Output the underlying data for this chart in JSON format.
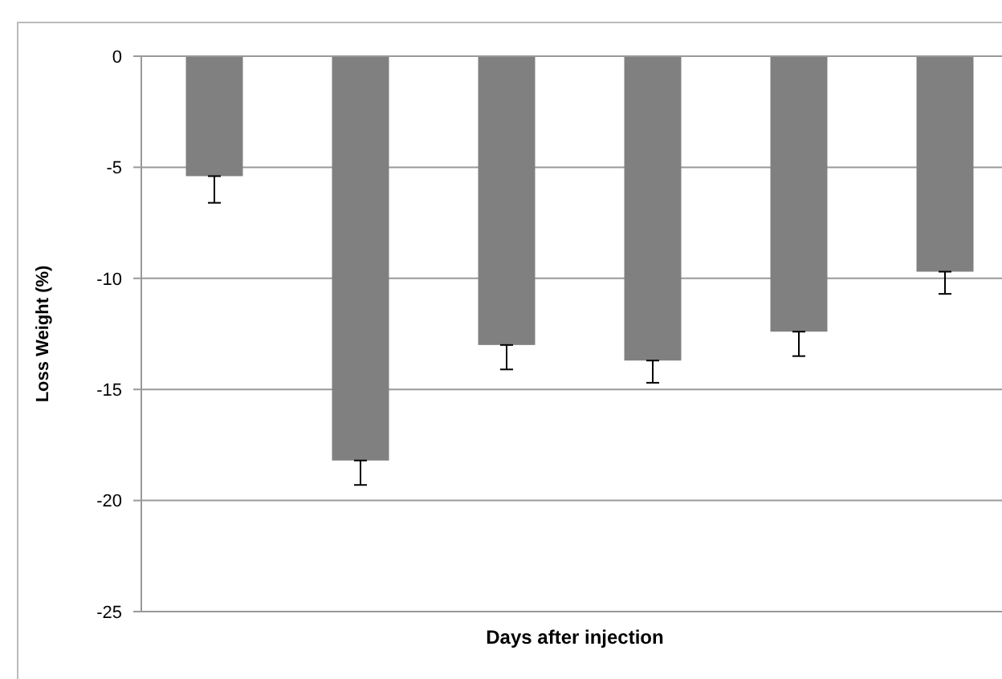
{
  "chart_data": {
    "type": "bar",
    "xlabel": "Days after injection",
    "ylabel": "Loss Weight (%)",
    "categories": [
      null,
      null,
      null,
      null,
      null,
      null
    ],
    "values": [
      -5.4,
      -18.2,
      -13,
      -13.7,
      -12.4,
      -9.7
    ],
    "errors": [
      [
        -6.6,
        -5.4
      ],
      [
        -19.3,
        -18.2
      ],
      [
        -14.1,
        -13
      ],
      [
        -14.7,
        -13.7
      ],
      [
        -13.5,
        -12.4
      ],
      [
        -10.7,
        -9.7
      ]
    ],
    "color": "#808080",
    "ylim": [
      -25,
      0
    ],
    "yticks": [
      0,
      -5,
      -10,
      -15,
      -20,
      -25
    ],
    "grid": "y"
  }
}
